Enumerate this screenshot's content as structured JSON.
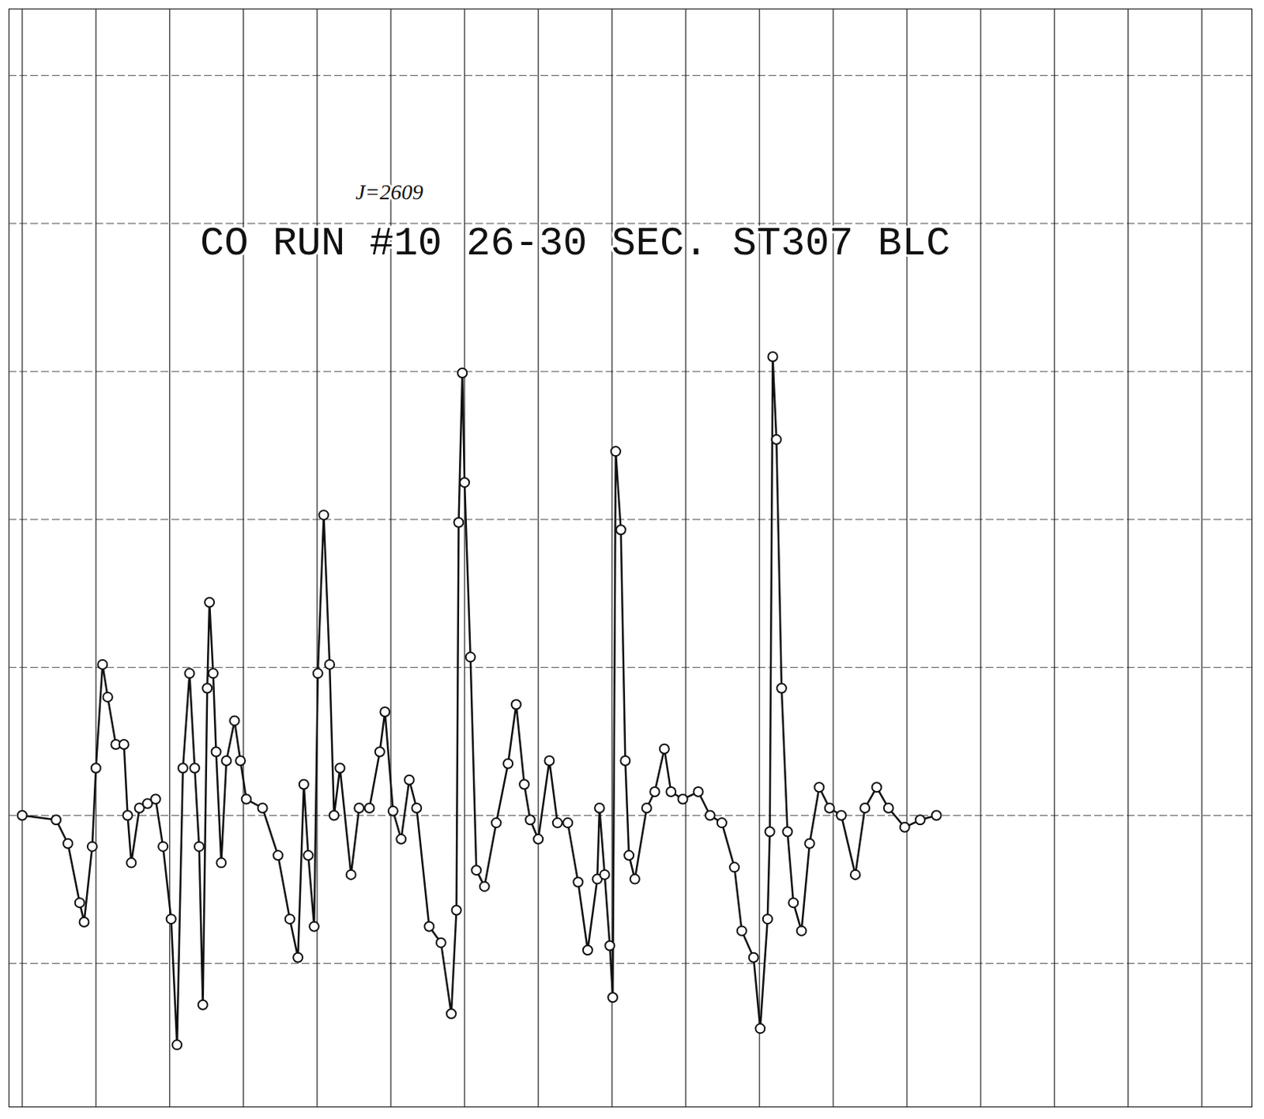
{
  "chart_data": {
    "type": "line",
    "grid": true,
    "tick_labels": false,
    "color": "#111111",
    "marker": "circle",
    "xlim": [
      -0.18,
      16.68
    ],
    "ylim": [
      -1.97,
      5.45
    ],
    "xticks": [
      0,
      1,
      2,
      3,
      4,
      5,
      6,
      7,
      8,
      9,
      10,
      11,
      12,
      13,
      14,
      15,
      16
    ],
    "yticks": [
      -1,
      0,
      1,
      2,
      3,
      4,
      5
    ],
    "annotations": [
      {
        "text": "CO RUN #10 26-30 SEC. ST307 BLC",
        "x": 7.5,
        "y": 3.88
      },
      {
        "text": "J=2609",
        "x": 4.98,
        "y": 4.21
      }
    ],
    "x": [
      0,
      0.46,
      0.62,
      0.78,
      0.84,
      0.95,
      1.0,
      1.09,
      1.16,
      1.27,
      1.38,
      1.43,
      1.48,
      1.59,
      1.7,
      1.81,
      1.91,
      2.02,
      2.1,
      2.18,
      2.27,
      2.34,
      2.4,
      2.45,
      2.51,
      2.54,
      2.59,
      2.63,
      2.7,
      2.77,
      2.88,
      2.96,
      3.04,
      3.26,
      3.47,
      3.63,
      3.74,
      3.82,
      3.88,
      3.96,
      4.01,
      4.09,
      4.17,
      4.23,
      4.31,
      4.46,
      4.57,
      4.71,
      4.85,
      4.92,
      5.03,
      5.14,
      5.25,
      5.35,
      5.52,
      5.68,
      5.82,
      5.89,
      5.92,
      5.97,
      6.0,
      6.08,
      6.16,
      6.27,
      6.43,
      6.59,
      6.7,
      6.81,
      6.89,
      7.0,
      7.15,
      7.26,
      7.4,
      7.54,
      7.67,
      7.8,
      7.83,
      7.9,
      7.97,
      8.01,
      8.05,
      8.12,
      8.18,
      8.23,
      8.31,
      8.47,
      8.58,
      8.71,
      8.8,
      8.96,
      9.17,
      9.33,
      9.49,
      9.66,
      9.76,
      9.92,
      10.01,
      10.11,
      10.14,
      10.18,
      10.23,
      10.3,
      10.38,
      10.46,
      10.57,
      10.68,
      10.81,
      10.95,
      11.11,
      11.3,
      11.43,
      11.59,
      11.75,
      11.97,
      12.18,
      12.4
    ],
    "values": [
      0,
      -0.03,
      -0.19,
      -0.59,
      -0.72,
      -0.21,
      0.32,
      1.02,
      0.8,
      0.48,
      0.48,
      0,
      -0.32,
      0.05,
      0.08,
      0.11,
      -0.21,
      -0.7,
      -1.55,
      0.32,
      0.96,
      0.32,
      -0.21,
      -1.28,
      0.86,
      1.44,
      0.96,
      0.43,
      -0.32,
      0.37,
      0.64,
      0.37,
      0.11,
      0.05,
      -0.27,
      -0.7,
      -0.96,
      0.21,
      -0.27,
      -0.75,
      0.96,
      2.03,
      1.02,
      0,
      0.32,
      -0.4,
      0.05,
      0.05,
      0.43,
      0.7,
      0.03,
      -0.16,
      0.24,
      0.05,
      -0.75,
      -0.86,
      -1.34,
      -0.64,
      1.98,
      2.99,
      2.25,
      1.07,
      -0.37,
      -0.48,
      -0.05,
      0.35,
      0.75,
      0.21,
      -0.03,
      -0.16,
      0.37,
      -0.05,
      -0.05,
      -0.45,
      -0.91,
      -0.43,
      0.05,
      -0.4,
      -0.88,
      -1.23,
      2.46,
      1.93,
      0.37,
      -0.27,
      -0.43,
      0.05,
      0.16,
      0.45,
      0.16,
      0.11,
      0.16,
      0,
      -0.05,
      -0.35,
      -0.78,
      -0.96,
      -1.44,
      -0.7,
      -0.11,
      3.1,
      2.54,
      0.86,
      -0.11,
      -0.59,
      -0.78,
      -0.19,
      0.19,
      0.05,
      0,
      -0.4,
      0.05,
      0.19,
      0.05,
      -0.08,
      -0.03,
      0
    ]
  }
}
